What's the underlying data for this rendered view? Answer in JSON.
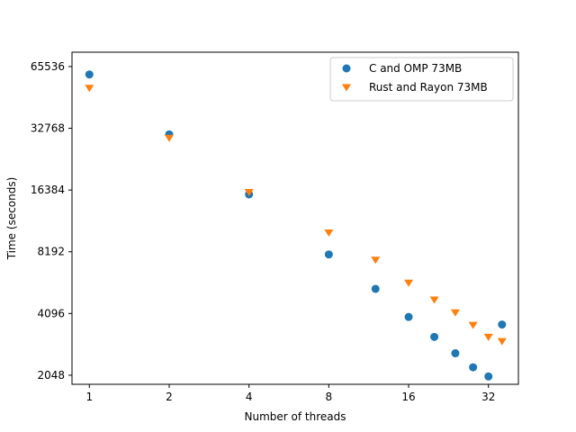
{
  "chart_data": {
    "type": "scatter",
    "xlabel": "Number of threads",
    "ylabel": "Time (seconds)",
    "x_scale": "log2",
    "y_scale": "log2",
    "xlim": [
      0.86,
      41.5
    ],
    "ylim": [
      1850,
      77000
    ],
    "x_ticks": [
      1,
      2,
      4,
      8,
      16,
      32
    ],
    "x_tick_labels": [
      "1",
      "2",
      "4",
      "8",
      "16",
      "32"
    ],
    "y_ticks": [
      2048,
      4096,
      8192,
      16384,
      32768,
      65536
    ],
    "y_tick_labels": [
      "2048",
      "4096",
      "8192",
      "16384",
      "32768",
      "65536"
    ],
    "grid": false,
    "legend_position": "top-right",
    "series": [
      {
        "name": "C and OMP 73MB",
        "color": "#1f77b4",
        "marker": "circle",
        "points": [
          [
            1,
            60000
          ],
          [
            2,
            30600
          ],
          [
            4,
            15600
          ],
          [
            8,
            7950
          ],
          [
            12,
            5400
          ],
          [
            16,
            3940
          ],
          [
            20,
            3150
          ],
          [
            24,
            2620
          ],
          [
            28,
            2240
          ],
          [
            32,
            2020
          ],
          [
            36,
            3620
          ]
        ]
      },
      {
        "name": "Rust and Rayon 73MB",
        "color": "#ff7f0e",
        "marker": "triangle-down",
        "points": [
          [
            1,
            51500
          ],
          [
            2,
            29400
          ],
          [
            4,
            16000
          ],
          [
            8,
            10150
          ],
          [
            12,
            7480
          ],
          [
            16,
            5780
          ],
          [
            20,
            4780
          ],
          [
            24,
            4140
          ],
          [
            28,
            3600
          ],
          [
            32,
            3150
          ],
          [
            36,
            3000
          ]
        ]
      }
    ]
  }
}
